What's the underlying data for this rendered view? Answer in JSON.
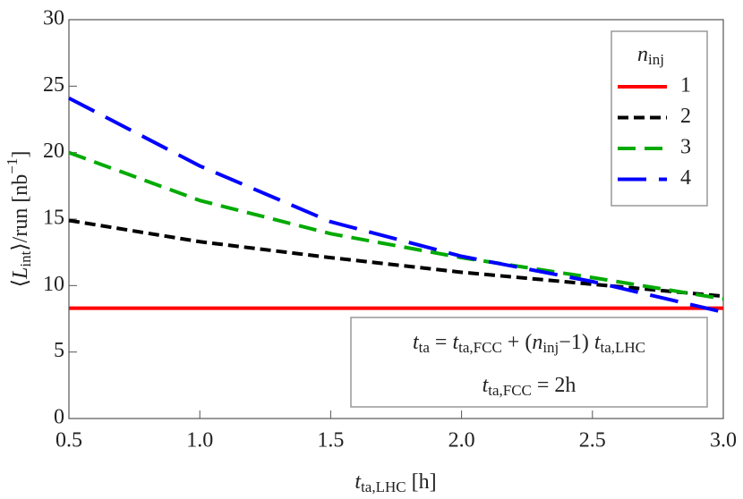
{
  "chart_data": {
    "type": "line",
    "x_label": [
      "t",
      "ta,LHC",
      " [h]"
    ],
    "y_label": [
      "⟨",
      "L",
      "int",
      "⟩/run [nb",
      "−1",
      "]"
    ],
    "legend_title": [
      "n",
      "inj"
    ],
    "annotation": {
      "line1": [
        "t",
        "ta",
        " = ",
        "t",
        "ta,FCC",
        " + (",
        "n",
        "inj",
        "−1) ",
        "t",
        "ta,LHC"
      ],
      "line2": [
        "t",
        "ta,FCC",
        " = 2h"
      ]
    },
    "x": [
      0.5,
      1.0,
      1.5,
      2.0,
      2.5,
      3.0
    ],
    "series": [
      {
        "name": "1",
        "color": "#ff0000",
        "dash": "solid",
        "values": [
          8.3,
          8.3,
          8.3,
          8.3,
          8.3,
          8.3
        ]
      },
      {
        "name": "2",
        "color": "#000000",
        "dash": "dashed",
        "values": [
          14.9,
          13.3,
          12.1,
          11.0,
          10.1,
          9.2
        ]
      },
      {
        "name": "3",
        "color": "#00aa00",
        "dash": "medium-dashed",
        "values": [
          20.0,
          16.4,
          13.9,
          12.1,
          10.6,
          9.0
        ]
      },
      {
        "name": "4",
        "color": "#0000ff",
        "dash": "long-dashed",
        "values": [
          24.1,
          19.0,
          14.8,
          12.2,
          10.3,
          8.0
        ]
      }
    ],
    "xlim": [
      0.5,
      3.0
    ],
    "xticks": [
      0.5,
      {
        "value": 1,
        "label": "1.0"
      },
      1.5,
      {
        "value": 2,
        "label": "2.0"
      },
      2.5,
      {
        "value": 3,
        "label": "3.0"
      }
    ],
    "ylim": [
      0,
      30
    ],
    "yticks": [
      0,
      5,
      10,
      15,
      20,
      25,
      30
    ]
  }
}
